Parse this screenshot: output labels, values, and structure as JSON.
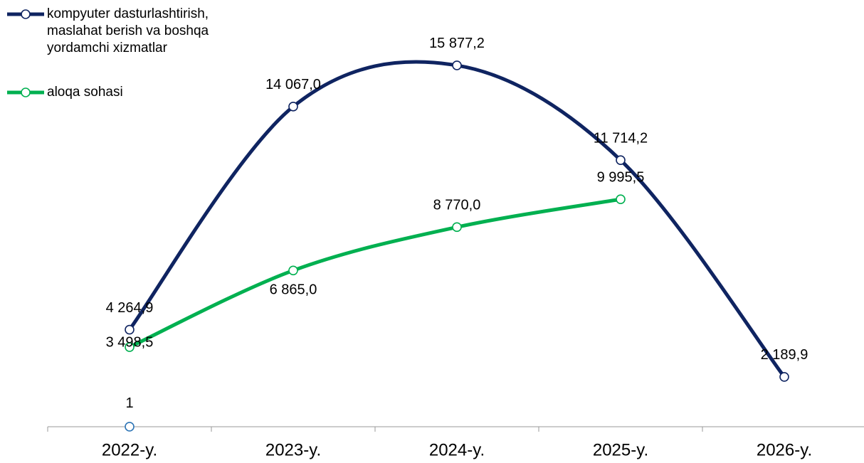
{
  "chart_data": {
    "type": "line",
    "categories": [
      "2022-y.",
      "2023-y.",
      "2024-y.",
      "2025-y.",
      "2026-y."
    ],
    "series": [
      {
        "name": "kompyuter dasturlashtirish, maslahat berish va boshqa yordamchi xizmatlar",
        "color": "#0f2461",
        "values": [
          4264.9,
          14067.0,
          15877.2,
          11714.2,
          2189.9
        ],
        "value_labels": [
          "4 264,9",
          "14 067,0",
          "15 877,2",
          "11 714,2",
          "2 189,9"
        ]
      },
      {
        "name": "aloqa sohasi",
        "color": "#00b050",
        "values": [
          3498.5,
          6865.0,
          8770.0,
          9995.5,
          null
        ],
        "value_labels": [
          "3 498,5",
          "6 865,0",
          "8 770,0",
          "9 995,5",
          null
        ]
      },
      {
        "color": "#2e75b6",
        "values": [
          1,
          null,
          null,
          null,
          null
        ]
      }
    ],
    "ylim": [
      0,
      17000
    ],
    "smooth": true
  }
}
